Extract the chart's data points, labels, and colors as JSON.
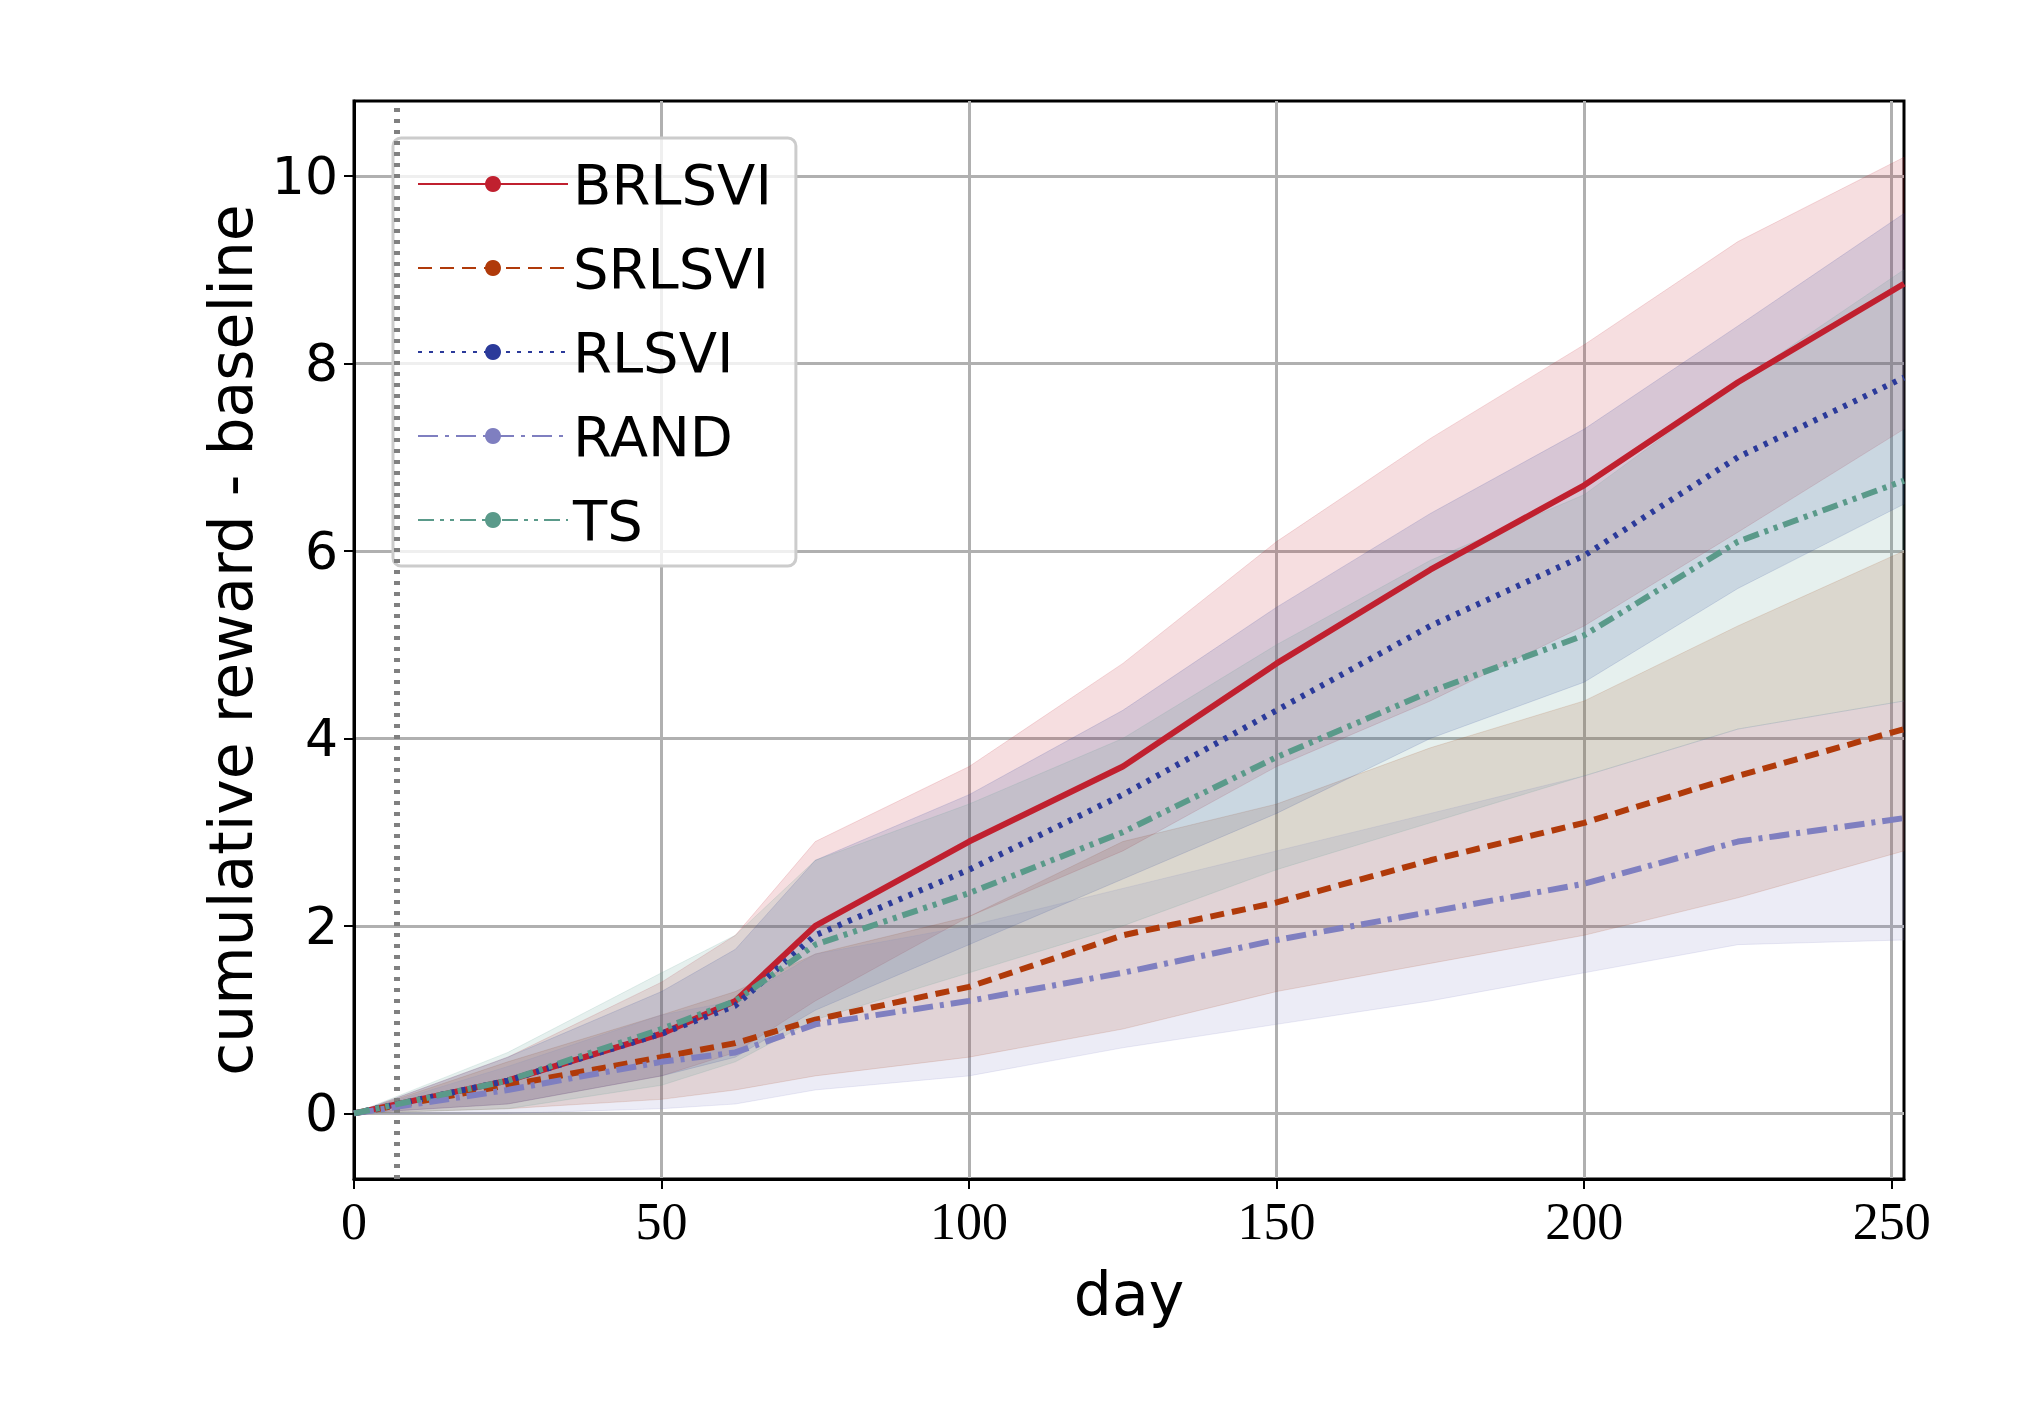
{
  "chart_data": {
    "type": "line",
    "xlabel": "day",
    "ylabel": "cumulative reward - baseline",
    "x": [
      0,
      25,
      50,
      62,
      75,
      100,
      125,
      150,
      175,
      200,
      225,
      252
    ],
    "xlim": [
      0,
      252
    ],
    "xticks": [
      0,
      50,
      100,
      150,
      200,
      250
    ],
    "ylim": [
      -0.7,
      10.8
    ],
    "yticks": [
      0,
      2,
      4,
      6,
      8,
      10
    ],
    "grid": true,
    "legend": "top left",
    "marker": "none",
    "ref_lines": [
      {
        "axis": "x",
        "value": 7,
        "color": "#808080",
        "line_style": "dotted"
      }
    ],
    "series": [
      {
        "name": "BRLSVI",
        "color": "#c0202f",
        "line_style": "solid",
        "values": [
          0,
          0.35,
          0.85,
          1.2,
          2.0,
          2.9,
          3.7,
          4.8,
          5.8,
          6.7,
          7.8,
          8.85
        ],
        "lower": [
          0,
          0.1,
          0.4,
          0.65,
          1.2,
          2.1,
          2.8,
          3.7,
          4.4,
          5.2,
          6.2,
          7.3
        ],
        "upper": [
          0,
          0.6,
          1.4,
          1.9,
          2.9,
          3.7,
          4.8,
          6.1,
          7.2,
          8.2,
          9.3,
          10.2
        ]
      },
      {
        "name": "SRLSVI",
        "color": "#b03a0a",
        "line_style": "dashed",
        "values": [
          0,
          0.3,
          0.6,
          0.75,
          1.0,
          1.35,
          1.9,
          2.25,
          2.7,
          3.1,
          3.6,
          4.1
        ],
        "lower": [
          0,
          0.05,
          0.15,
          0.25,
          0.4,
          0.6,
          0.9,
          1.3,
          1.6,
          1.9,
          2.3,
          2.8
        ],
        "upper": [
          0,
          0.55,
          1.05,
          1.3,
          1.7,
          2.1,
          2.9,
          3.3,
          3.9,
          4.4,
          5.2,
          6.0
        ]
      },
      {
        "name": "RLSVI",
        "color": "#2b3a9a",
        "line_style": "dotted",
        "values": [
          0,
          0.35,
          0.85,
          1.15,
          1.9,
          2.6,
          3.4,
          4.3,
          5.2,
          5.95,
          7.0,
          7.85
        ],
        "lower": [
          0,
          0.1,
          0.4,
          0.6,
          1.1,
          1.8,
          2.5,
          3.2,
          4.0,
          4.6,
          5.6,
          6.5
        ],
        "upper": [
          0,
          0.6,
          1.3,
          1.75,
          2.7,
          3.4,
          4.3,
          5.4,
          6.4,
          7.3,
          8.4,
          9.6
        ]
      },
      {
        "name": "RAND",
        "color": "#7f7fc0",
        "line_style": "dashdot",
        "values": [
          0,
          0.25,
          0.55,
          0.65,
          0.95,
          1.2,
          1.5,
          1.85,
          2.15,
          2.45,
          2.9,
          3.15
        ],
        "lower": [
          0,
          0,
          0.05,
          0.1,
          0.25,
          0.4,
          0.7,
          0.95,
          1.2,
          1.5,
          1.8,
          1.85
        ],
        "upper": [
          0,
          0.5,
          1.05,
          1.2,
          1.7,
          2.0,
          2.4,
          2.8,
          3.2,
          3.6,
          4.1,
          4.4
        ]
      },
      {
        "name": "TS",
        "color": "#5a9a8a",
        "line_style": "dashdotdot",
        "values": [
          0,
          0.35,
          0.9,
          1.2,
          1.8,
          2.35,
          3.0,
          3.8,
          4.5,
          5.1,
          6.1,
          6.75
        ],
        "lower": [
          0,
          0.05,
          0.3,
          0.55,
          1.0,
          1.5,
          2.0,
          2.6,
          3.1,
          3.6,
          4.1,
          4.4
        ],
        "upper": [
          0,
          0.65,
          1.5,
          1.9,
          2.7,
          3.3,
          4.0,
          5.0,
          5.9,
          6.6,
          7.8,
          9.0
        ]
      }
    ]
  }
}
